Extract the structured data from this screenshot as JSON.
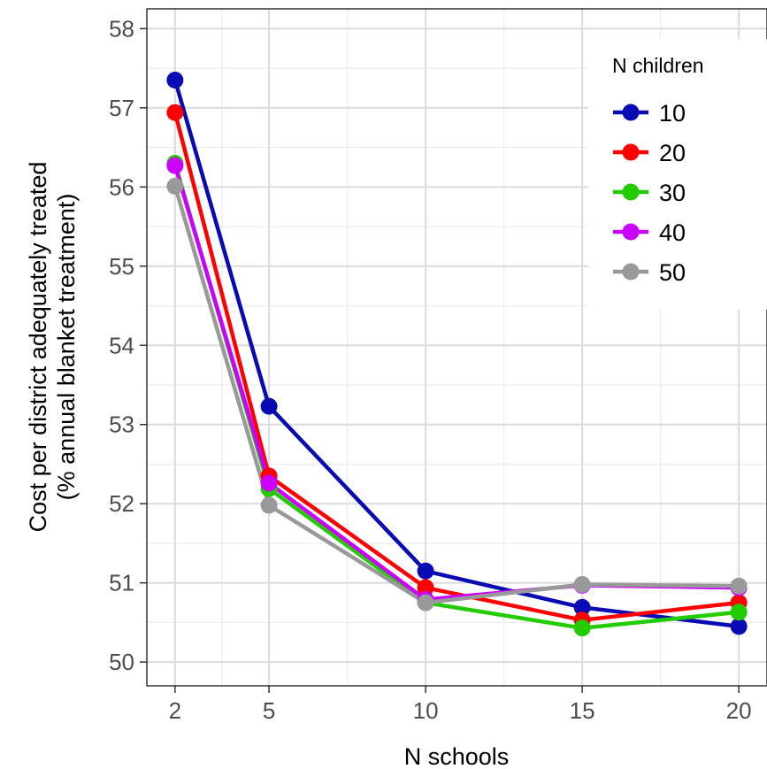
{
  "chart_data": {
    "type": "line",
    "xlabel": "N schools",
    "ylabel_line1": "Cost per district adequately treated",
    "ylabel_line2": "(% annual blanket treatment)",
    "x": [
      2,
      5,
      10,
      15,
      20
    ],
    "x_ticks": [
      "2",
      "5",
      "10",
      "15",
      "20"
    ],
    "xlim": [
      1.1,
      20.9
    ],
    "y_ticks": [
      "50",
      "51",
      "52",
      "53",
      "54",
      "55",
      "56",
      "57",
      "58"
    ],
    "ylim": [
      49.7,
      58.25
    ],
    "grid": true,
    "legend_title": "N children",
    "legend_position": "top-right",
    "series": [
      {
        "name": "10",
        "color": "#0a0ab4",
        "values": [
          57.35,
          53.23,
          51.15,
          50.69,
          50.45
        ]
      },
      {
        "name": "20",
        "color": "#ff0000",
        "values": [
          56.94,
          52.35,
          50.94,
          50.53,
          50.75
        ]
      },
      {
        "name": "30",
        "color": "#22cc00",
        "values": [
          56.3,
          52.19,
          50.75,
          50.43,
          50.63
        ]
      },
      {
        "name": "40",
        "color": "#cc00ff",
        "values": [
          56.27,
          52.26,
          50.79,
          50.97,
          50.94
        ]
      },
      {
        "name": "50",
        "color": "#999999",
        "values": [
          56.01,
          51.98,
          50.75,
          50.98,
          50.96
        ]
      }
    ]
  }
}
